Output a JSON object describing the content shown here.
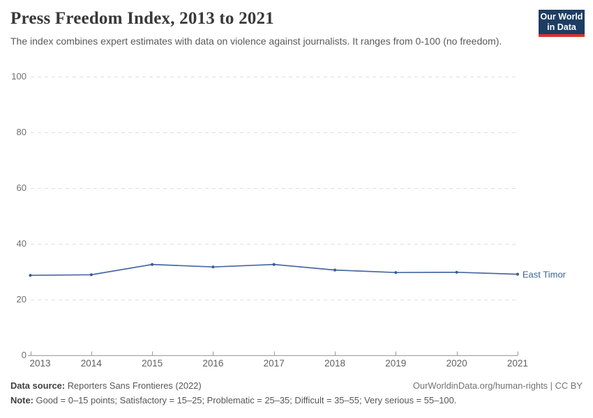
{
  "header": {
    "title": "Press Freedom Index, 2013 to 2021",
    "subtitle": "The index combines expert estimates with data on violence against journalists. It ranges from 0-100 (no freedom).",
    "logo_line1": "Our World",
    "logo_line2": "in Data"
  },
  "chart_data": {
    "type": "line",
    "title": "Press Freedom Index, 2013 to 2021",
    "x": [
      2013,
      2014,
      2015,
      2016,
      2017,
      2018,
      2019,
      2020,
      2021
    ],
    "series": [
      {
        "name": "East Timor",
        "values": [
          28.7,
          28.9,
          32.6,
          31.7,
          32.6,
          30.6,
          29.7,
          29.8,
          29.1
        ]
      }
    ],
    "yticks": [
      0,
      20,
      40,
      60,
      80,
      100
    ],
    "ylim": [
      0,
      100
    ],
    "xlabel": "",
    "ylabel": "",
    "grid": true,
    "legend": "end-of-line label"
  },
  "colors": {
    "line": "#4868a4",
    "dot": "#3c5d94",
    "series_label": "#3d6399",
    "grid": "#dedede",
    "axis": "#9a9a9a",
    "logo_bg": "#1d3d63",
    "logo_stripe": "#d8332c"
  },
  "footer": {
    "data_source_label": "Data source:",
    "data_source_text": "Reporters Sans Frontieres (2022)",
    "link": "OurWorldinData.org/human-rights | CC BY",
    "note_label": "Note:",
    "note_text": "Good = 0–15 points; Satisfactory = 15–25; Problematic = 25–35; Difficult = 35–55; Very serious = 55–100."
  }
}
